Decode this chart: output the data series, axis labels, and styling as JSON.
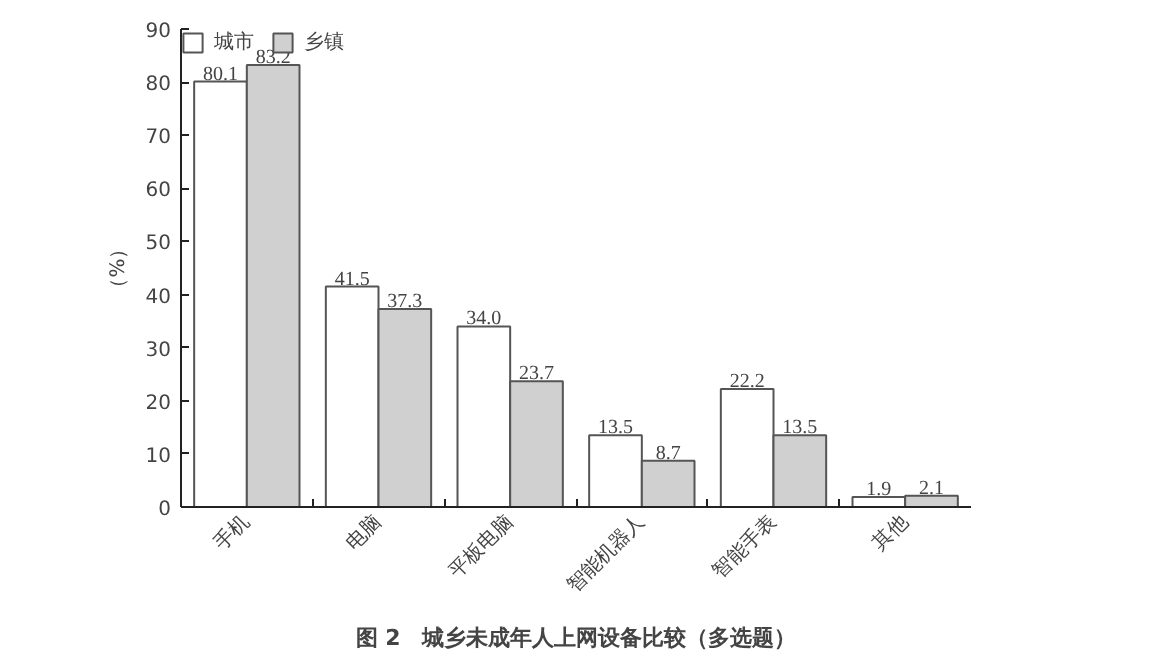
{
  "chart_data": {
    "type": "bar",
    "categories": [
      "手机",
      "电脑",
      "平板电脑",
      "智能机器人",
      "智能手表",
      "其他"
    ],
    "ylabel": "（%）",
    "ylim": [
      0,
      90
    ],
    "yticks": [
      0,
      10,
      20,
      30,
      40,
      50,
      60,
      70,
      80,
      90
    ],
    "grid": false,
    "legend": "top left",
    "series": [
      {
        "name": "城市",
        "color": "#ffffff",
        "values": [
          80.1,
          41.5,
          34.0,
          13.5,
          22.2,
          1.9
        ],
        "value_labels": [
          "80.1",
          "41.5",
          "34.0",
          "13.5",
          "22.2",
          "1.9"
        ]
      },
      {
        "name": "乡镇",
        "color": "#d0d0d0",
        "values": [
          83.2,
          37.3,
          23.7,
          8.7,
          13.5,
          2.1
        ],
        "value_labels": [
          "83.2",
          "37.3",
          "23.7",
          "8.7",
          "13.5",
          "2.1"
        ]
      }
    ],
    "annotations": [
      "图 2　城乡未成年人上网设备比较（多选题）"
    ]
  }
}
